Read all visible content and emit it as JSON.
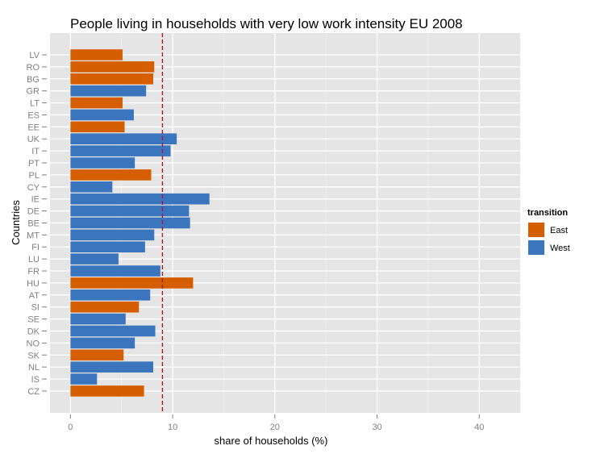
{
  "chart_data": {
    "type": "bar",
    "orientation": "horizontal",
    "title": "People living in households with very low work intensity EU 2008",
    "xlabel": "share of households (%)",
    "ylabel": "Countries",
    "xlim": [
      -2,
      44
    ],
    "xticks": [
      0,
      10,
      20,
      30,
      40
    ],
    "grid": true,
    "legend_title": "transition",
    "legend_position": "right",
    "reference_line": {
      "x": 9,
      "color": "#b2182b",
      "style": "dashed"
    },
    "series": [
      {
        "name": "East",
        "color": "#d55e00"
      },
      {
        "name": "West",
        "color": "#3a75bd"
      }
    ],
    "categories": [
      "LV",
      "RO",
      "BG",
      "GR",
      "LT",
      "ES",
      "EE",
      "UK",
      "IT",
      "PT",
      "PL",
      "CY",
      "IE",
      "DE",
      "BE",
      "MT",
      "FI",
      "LU",
      "FR",
      "HU",
      "AT",
      "SI",
      "SE",
      "DK",
      "NO",
      "SK",
      "NL",
      "IS",
      "CZ"
    ],
    "values": [
      5.1,
      8.2,
      8.1,
      7.4,
      5.1,
      6.2,
      5.3,
      10.4,
      9.8,
      6.3,
      7.9,
      4.1,
      13.6,
      11.6,
      11.7,
      8.2,
      7.3,
      4.7,
      8.8,
      12.0,
      7.8,
      6.7,
      5.4,
      8.3,
      6.3,
      5.2,
      8.1,
      2.6,
      7.2
    ],
    "groups": [
      "East",
      "East",
      "East",
      "West",
      "East",
      "West",
      "East",
      "West",
      "West",
      "West",
      "East",
      "West",
      "West",
      "West",
      "West",
      "West",
      "West",
      "West",
      "West",
      "East",
      "West",
      "East",
      "West",
      "West",
      "West",
      "East",
      "West",
      "West",
      "East"
    ]
  }
}
